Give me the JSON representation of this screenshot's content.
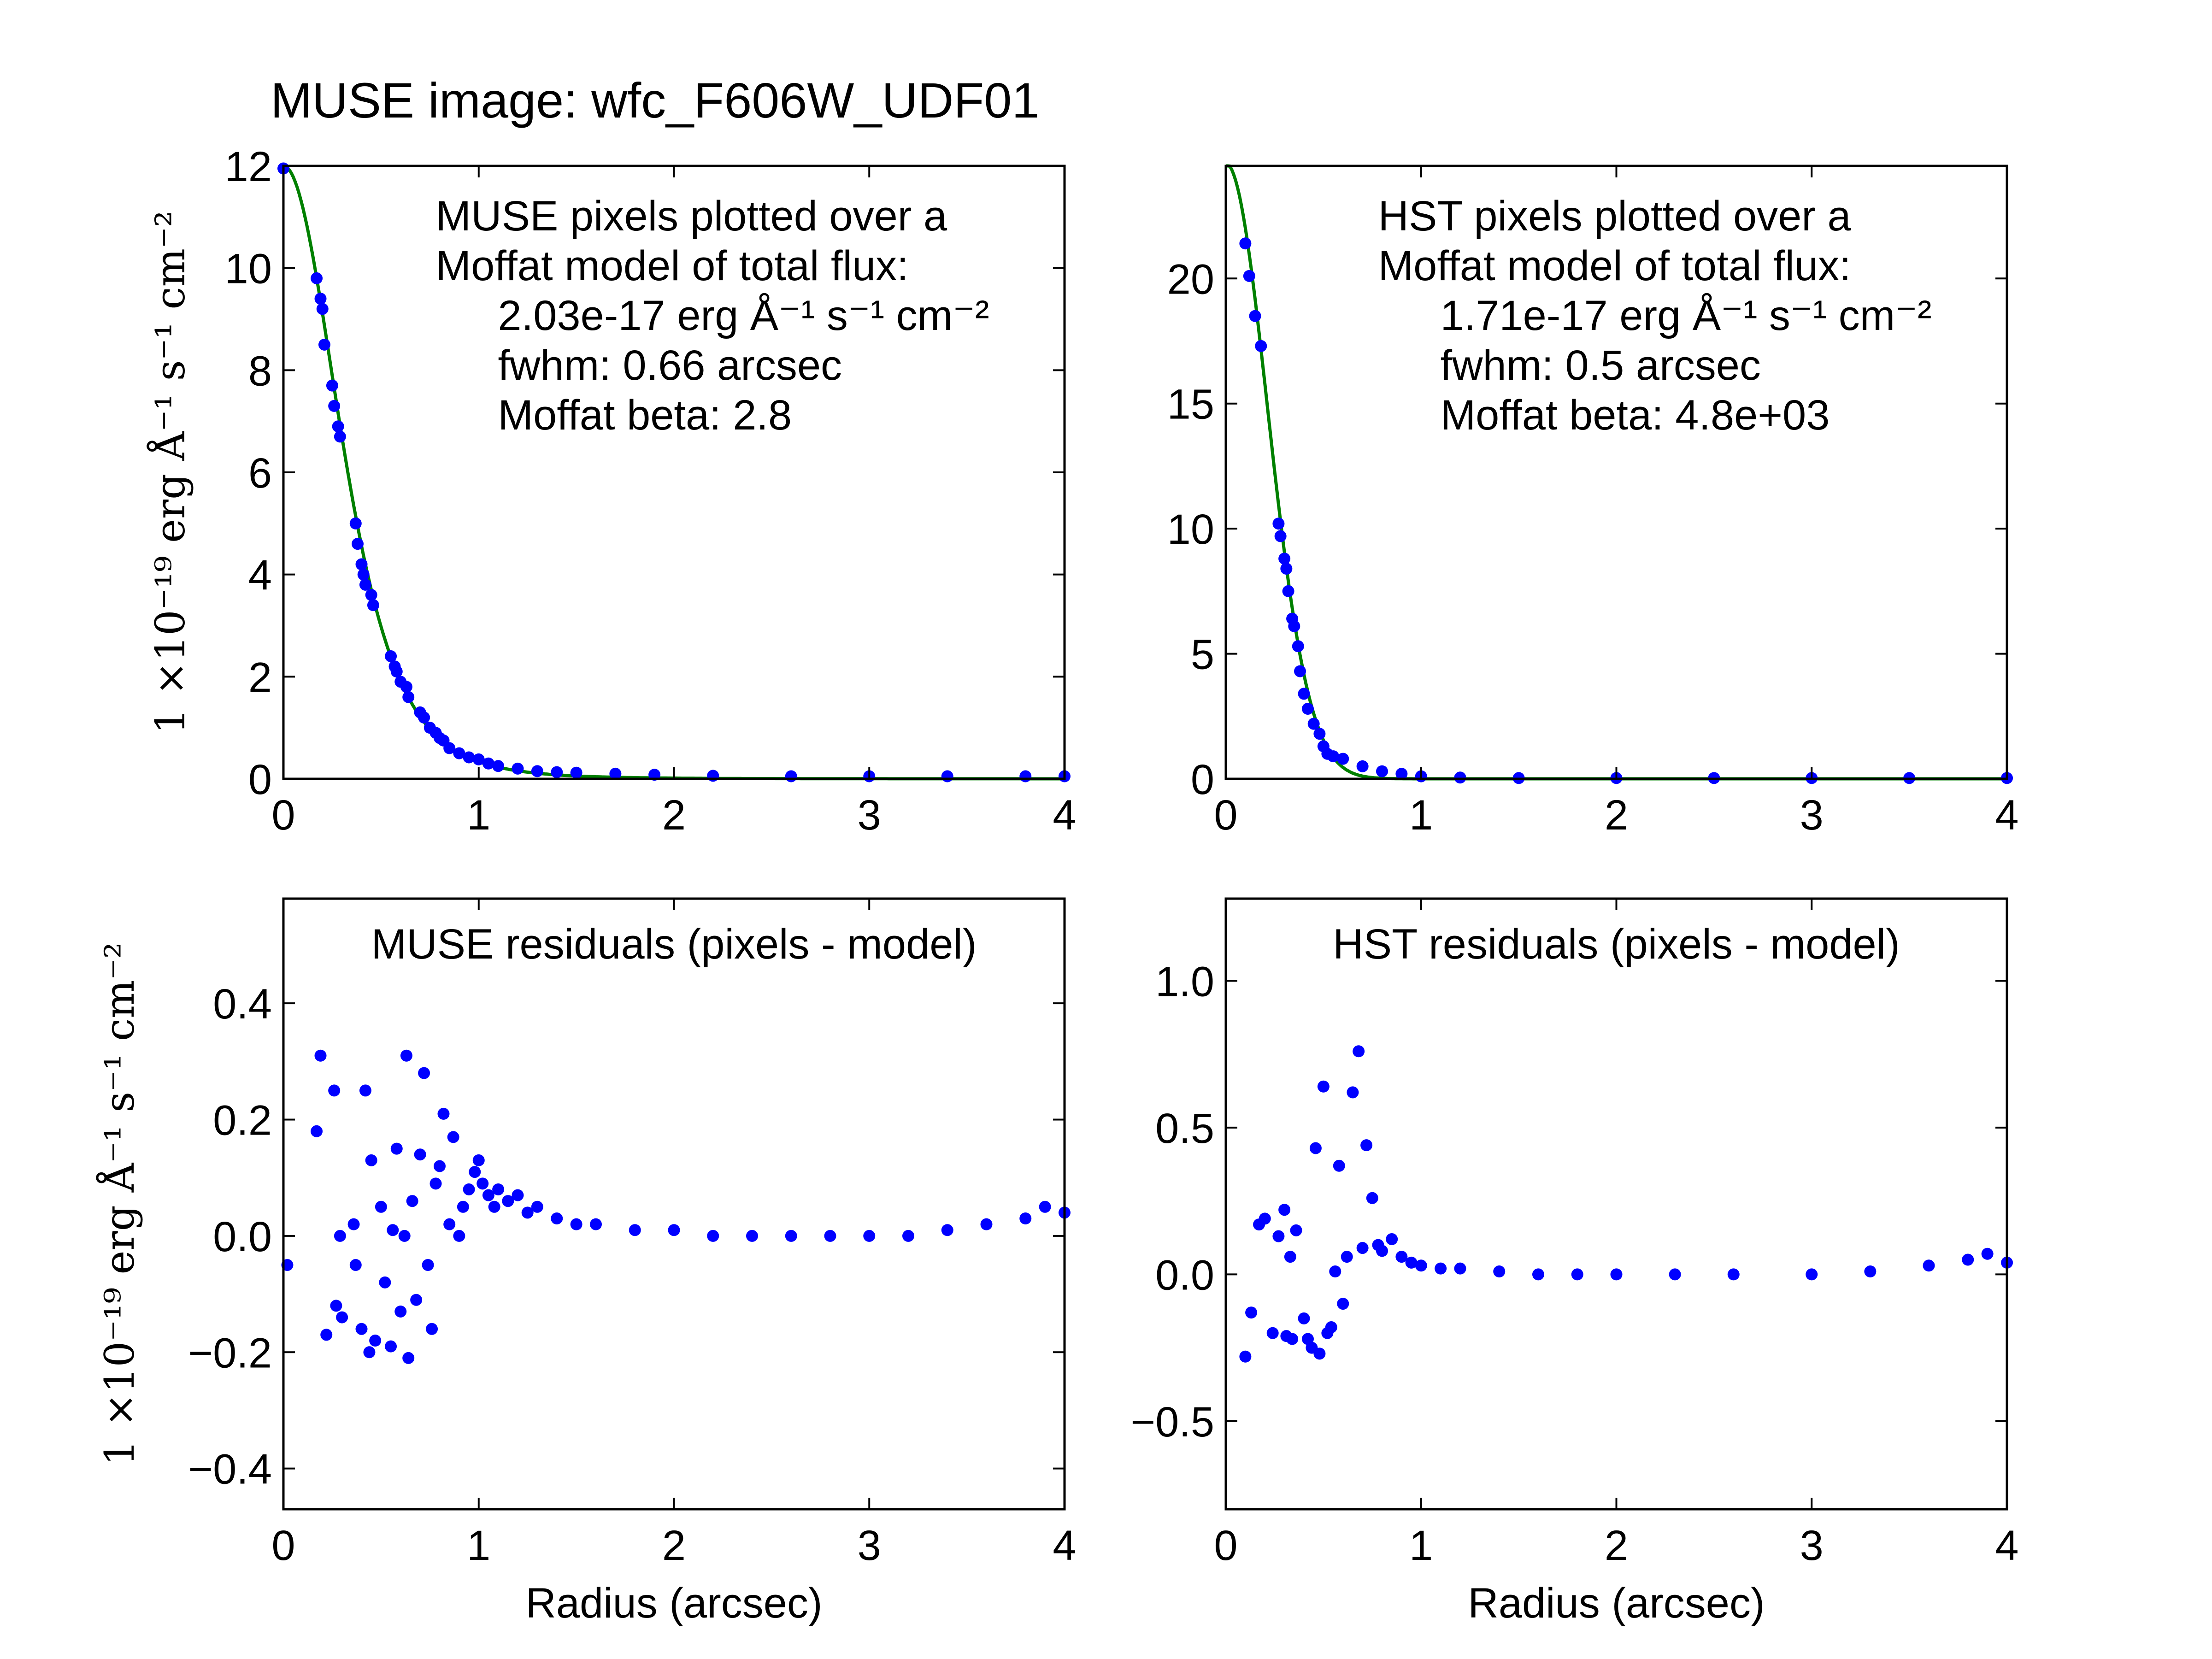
{
  "figure_title": "MUSE image: wfc_F606W_UDF01",
  "colors": {
    "points": "#0000ff",
    "model": "#008000",
    "axes": "#000000"
  },
  "chart_data": [
    {
      "id": "muse_profile",
      "type": "scatter",
      "ylabel": "1 ×10⁻¹⁹ erg Å⁻¹ s⁻¹ cm⁻²",
      "xlabel": "",
      "xlim": [
        0,
        4
      ],
      "ylim": [
        0,
        12
      ],
      "xticks": [
        0,
        1,
        2,
        3,
        4
      ],
      "xtick_labels": [
        "0",
        "1",
        "2",
        "3",
        "4"
      ],
      "yticks": [
        0,
        2,
        4,
        6,
        8,
        10,
        12
      ],
      "ytick_labels": [
        "0",
        "2",
        "4",
        "6",
        "8",
        "10",
        "12"
      ],
      "annotation": [
        "MUSE pixels plotted over a",
        "Moffat model of total flux:",
        "2.03e-17 erg Å⁻¹ s⁻¹ cm⁻²",
        "fwhm: 0.66 arcsec",
        "Moffat beta: 2.8"
      ],
      "model": {
        "peak": 12.0,
        "fwhm": 0.66,
        "beta": 2.8
      },
      "series": [
        {
          "kind": "points",
          "x": [
            0.0,
            0.17,
            0.19,
            0.2,
            0.21,
            0.25,
            0.26,
            0.28,
            0.29,
            0.37,
            0.38,
            0.4,
            0.41,
            0.42,
            0.45,
            0.46,
            0.55,
            0.57,
            0.58,
            0.6,
            0.63,
            0.64,
            0.7,
            0.72,
            0.75,
            0.78,
            0.8,
            0.82,
            0.85,
            0.9,
            0.95,
            1.0,
            1.05,
            1.1,
            1.2,
            1.3,
            1.4,
            1.5,
            1.7,
            1.9,
            2.2,
            2.6,
            3.0,
            3.4,
            3.8,
            4.0
          ],
          "y": [
            11.95,
            9.8,
            9.4,
            9.2,
            8.5,
            7.7,
            7.3,
            6.9,
            6.7,
            5.0,
            4.6,
            4.2,
            4.0,
            3.8,
            3.6,
            3.4,
            2.4,
            2.2,
            2.1,
            1.9,
            1.8,
            1.6,
            1.3,
            1.2,
            1.0,
            0.9,
            0.8,
            0.75,
            0.6,
            0.5,
            0.42,
            0.38,
            0.3,
            0.25,
            0.2,
            0.15,
            0.13,
            0.12,
            0.1,
            0.08,
            0.06,
            0.05,
            0.05,
            0.05,
            0.05,
            0.05
          ]
        }
      ]
    },
    {
      "id": "hst_profile",
      "type": "scatter",
      "ylabel": "",
      "xlabel": "",
      "xlim": [
        0,
        4
      ],
      "ylim": [
        0,
        24.5
      ],
      "xticks": [
        0,
        1,
        2,
        3,
        4
      ],
      "xtick_labels": [
        "0",
        "1",
        "2",
        "3",
        "4"
      ],
      "yticks": [
        0,
        5,
        10,
        15,
        20
      ],
      "ytick_labels": [
        "0",
        "5",
        "10",
        "15",
        "20"
      ],
      "annotation": [
        "HST pixels plotted over a",
        "Moffat model of total flux:",
        "1.71e-17 erg Å⁻¹ s⁻¹ cm⁻²",
        "fwhm: 0.5 arcsec",
        "Moffat beta: 4.8e+03"
      ],
      "model": {
        "peak": 24.6,
        "fwhm": 0.5,
        "beta": 4800
      },
      "series": [
        {
          "kind": "points",
          "x": [
            0.1,
            0.12,
            0.15,
            0.18,
            0.27,
            0.28,
            0.3,
            0.31,
            0.32,
            0.34,
            0.35,
            0.37,
            0.38,
            0.4,
            0.42,
            0.45,
            0.48,
            0.5,
            0.52,
            0.55,
            0.6,
            0.7,
            0.8,
            0.9,
            1.0,
            1.2,
            1.5,
            2.0,
            2.5,
            3.0,
            3.5,
            4.0
          ],
          "y": [
            21.4,
            20.1,
            18.5,
            17.3,
            10.2,
            9.7,
            8.8,
            8.4,
            7.5,
            6.4,
            6.1,
            5.3,
            4.3,
            3.4,
            2.8,
            2.2,
            1.8,
            1.3,
            1.0,
            0.9,
            0.8,
            0.5,
            0.3,
            0.2,
            0.1,
            0.05,
            0.03,
            0.03,
            0.03,
            0.03,
            0.03,
            0.03
          ]
        }
      ]
    },
    {
      "id": "muse_residuals",
      "type": "scatter",
      "title": "MUSE residuals (pixels - model)",
      "ylabel": "1 ×10⁻¹⁹ erg Å⁻¹ s⁻¹ cm⁻²",
      "xlabel": "Radius (arcsec)",
      "xlim": [
        0,
        4
      ],
      "ylim": [
        -0.47,
        0.58
      ],
      "xticks": [
        0,
        1,
        2,
        3,
        4
      ],
      "xtick_labels": [
        "0",
        "1",
        "2",
        "3",
        "4"
      ],
      "yticks": [
        -0.4,
        -0.2,
        0.0,
        0.2,
        0.4
      ],
      "ytick_labels": [
        "−0.4",
        "−0.2",
        "0.0",
        "0.2",
        "0.4"
      ],
      "series": [
        {
          "kind": "points",
          "x": [
            0.02,
            0.17,
            0.19,
            0.22,
            0.26,
            0.27,
            0.29,
            0.3,
            0.36,
            0.37,
            0.4,
            0.42,
            0.44,
            0.45,
            0.47,
            0.5,
            0.52,
            0.55,
            0.56,
            0.58,
            0.6,
            0.62,
            0.63,
            0.64,
            0.66,
            0.68,
            0.7,
            0.72,
            0.74,
            0.76,
            0.78,
            0.8,
            0.82,
            0.85,
            0.87,
            0.9,
            0.92,
            0.95,
            0.98,
            1.0,
            1.02,
            1.05,
            1.08,
            1.1,
            1.15,
            1.2,
            1.25,
            1.3,
            1.4,
            1.5,
            1.6,
            1.8,
            2.0,
            2.2,
            2.4,
            2.6,
            2.8,
            3.0,
            3.2,
            3.4,
            3.6,
            3.8,
            3.9,
            4.0
          ],
          "y": [
            -0.05,
            0.18,
            0.31,
            -0.17,
            0.25,
            -0.12,
            0.0,
            -0.14,
            0.02,
            -0.05,
            -0.16,
            0.25,
            -0.2,
            0.13,
            -0.18,
            0.05,
            -0.08,
            -0.19,
            0.01,
            0.15,
            -0.13,
            0.0,
            0.31,
            -0.21,
            0.06,
            -0.11,
            0.14,
            0.28,
            -0.05,
            -0.16,
            0.09,
            0.12,
            0.21,
            0.02,
            0.17,
            0.0,
            0.05,
            0.08,
            0.11,
            0.13,
            0.09,
            0.07,
            0.05,
            0.08,
            0.06,
            0.07,
            0.04,
            0.05,
            0.03,
            0.02,
            0.02,
            0.01,
            0.01,
            0.0,
            0.0,
            0.0,
            0.0,
            0.0,
            0.0,
            0.01,
            0.02,
            0.03,
            0.05,
            0.04
          ]
        }
      ]
    },
    {
      "id": "hst_residuals",
      "type": "scatter",
      "title": "HST residuals (pixels - model)",
      "ylabel": "",
      "xlabel": "Radius (arcsec)",
      "xlim": [
        0,
        4
      ],
      "ylim": [
        -0.8,
        1.28
      ],
      "xticks": [
        0,
        1,
        2,
        3,
        4
      ],
      "xtick_labels": [
        "0",
        "1",
        "2",
        "3",
        "4"
      ],
      "yticks": [
        -0.5,
        0.0,
        0.5,
        1.0
      ],
      "ytick_labels": [
        "−0.5",
        "0.0",
        "0.5",
        "1.0"
      ],
      "series": [
        {
          "kind": "points",
          "x": [
            0.1,
            0.13,
            0.17,
            0.2,
            0.24,
            0.27,
            0.3,
            0.31,
            0.33,
            0.34,
            0.36,
            0.4,
            0.42,
            0.44,
            0.46,
            0.48,
            0.5,
            0.52,
            0.54,
            0.56,
            0.58,
            0.6,
            0.62,
            0.65,
            0.68,
            0.7,
            0.72,
            0.75,
            0.78,
            0.8,
            0.85,
            0.9,
            0.95,
            1.0,
            1.1,
            1.2,
            1.4,
            1.6,
            1.8,
            2.0,
            2.3,
            2.6,
            3.0,
            3.3,
            3.6,
            3.8,
            3.9,
            4.0
          ],
          "y": [
            -0.28,
            -0.13,
            0.17,
            0.19,
            -0.2,
            0.13,
            0.22,
            -0.21,
            0.06,
            -0.22,
            0.15,
            -0.15,
            -0.22,
            -0.25,
            0.43,
            -0.27,
            0.64,
            -0.2,
            -0.18,
            0.01,
            0.37,
            -0.1,
            0.06,
            0.62,
            0.76,
            0.09,
            0.44,
            0.26,
            0.1,
            0.08,
            0.12,
            0.06,
            0.04,
            0.03,
            0.02,
            0.02,
            0.01,
            0.0,
            0.0,
            0.0,
            0.0,
            0.0,
            0.0,
            0.01,
            0.03,
            0.05,
            0.07,
            0.04
          ]
        }
      ]
    }
  ]
}
